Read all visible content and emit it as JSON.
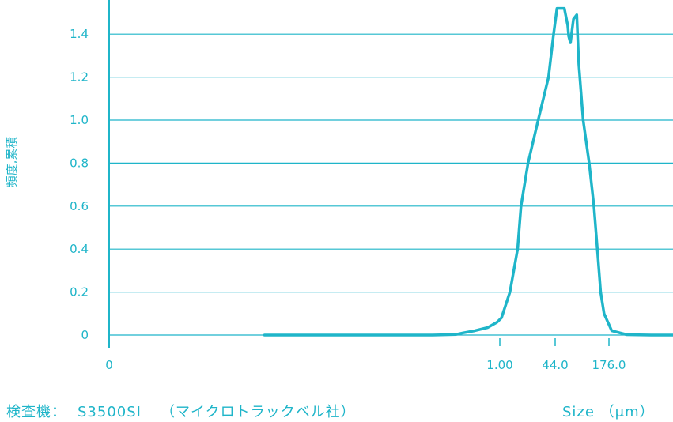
{
  "chart_data": {
    "type": "line",
    "xlabel": "Size （μm）",
    "ylabel": "頻度,累積",
    "x_scale": "log",
    "x_ticks": [
      "0",
      "1.00",
      "44.0",
      "176.0"
    ],
    "y_ticks": [
      "0",
      "0.2",
      "0.4",
      "0.6",
      "0.8",
      "1.0",
      "1.2",
      "1.4"
    ],
    "ylim": [
      0,
      1.55
    ],
    "grid": "horizontal",
    "series": [
      {
        "points": [
          [
            -7,
            0
          ],
          [
            -2,
            0
          ],
          [
            -1.3,
            0.003
          ],
          [
            -1.1,
            0.01
          ],
          [
            -0.75,
            0.02
          ],
          [
            -0.36,
            0.035
          ],
          [
            -0.08,
            0.06
          ],
          [
            0.05,
            0.08
          ],
          [
            0.3,
            0.2
          ],
          [
            0.53,
            0.4
          ],
          [
            0.63,
            0.6
          ],
          [
            0.84,
            0.8
          ],
          [
            1.14,
            1.0
          ],
          [
            1.45,
            1.2
          ],
          [
            1.6,
            1.4
          ],
          [
            1.7,
            1.52
          ],
          [
            1.92,
            1.52
          ],
          [
            2.02,
            1.44
          ],
          [
            2.05,
            1.39
          ],
          [
            2.1,
            1.36
          ],
          [
            2.19,
            1.47
          ],
          [
            2.29,
            1.49
          ],
          [
            2.35,
            1.26
          ],
          [
            2.48,
            1.0
          ],
          [
            2.66,
            0.8
          ],
          [
            2.8,
            0.6
          ],
          [
            2.9,
            0.4
          ],
          [
            3.0,
            0.2
          ],
          [
            3.1,
            0.1
          ],
          [
            3.33,
            0.02
          ],
          [
            3.78,
            0.002
          ],
          [
            4.5,
            0
          ],
          [
            7.2,
            0
          ]
        ]
      }
    ]
  },
  "instrument": {
    "label": "検査機：",
    "model": "S3500SI",
    "maker": "（マイクロトラックベル社）"
  },
  "colors": {
    "accent": "#1fb5c9",
    "grid": "#1fb5c9",
    "line": "#1fb5c9"
  }
}
